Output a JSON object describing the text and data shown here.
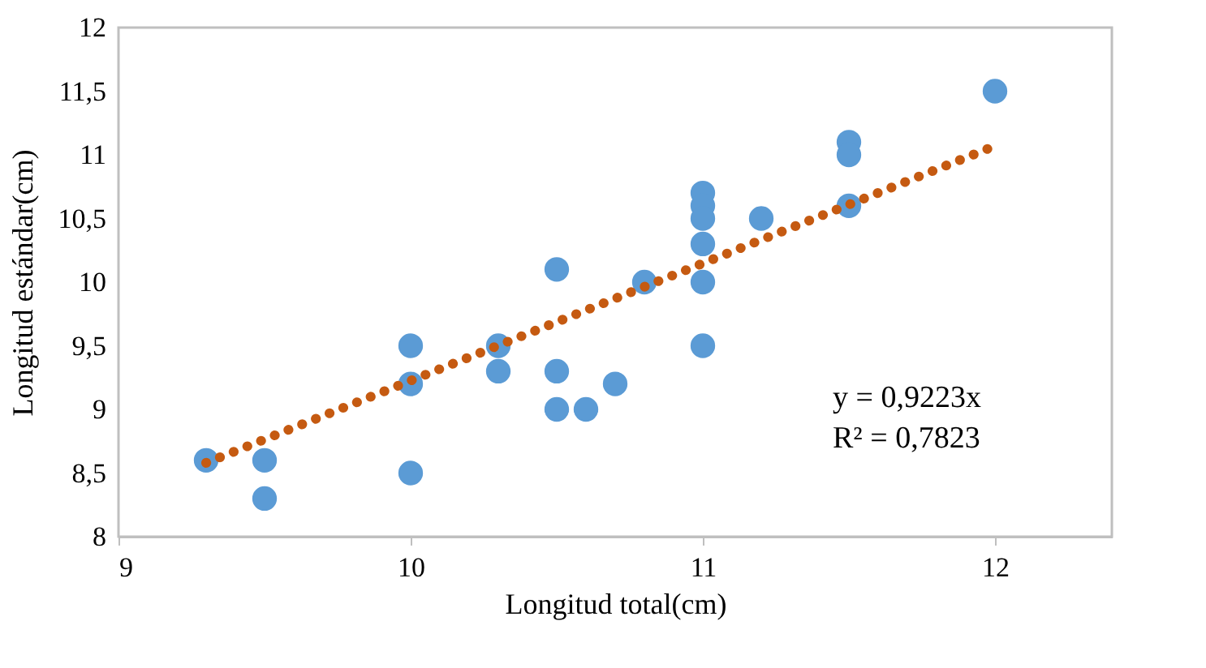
{
  "chart_data": {
    "type": "scatter",
    "xlabel": "Longitud total(cm)",
    "ylabel": "Longitud estándar(cm)",
    "xlim": [
      9,
      12.4
    ],
    "xticks": [
      9,
      10,
      11,
      12
    ],
    "ylim": [
      8,
      12
    ],
    "yticks": [
      8,
      {
        "value": 8.5,
        "label": "8,5"
      },
      9,
      {
        "value": 9.5,
        "label": "9,5"
      },
      10,
      {
        "value": 10.5,
        "label": "10,5"
      },
      11,
      {
        "value": 11.5,
        "label": "11,5"
      },
      12
    ],
    "grid": false,
    "series": [
      {
        "type": "scatter",
        "color": "#5b9bd5",
        "marker": "circle",
        "x": [
          9.3,
          9.5,
          9.5,
          10,
          10,
          10,
          10.3,
          10.3,
          10.5,
          10.5,
          10.5,
          10.6,
          10.7,
          10.8,
          11,
          11,
          11,
          11,
          11,
          11,
          11.2,
          11.5,
          11.5,
          11.5,
          12
        ],
        "values": [
          8.6,
          8.6,
          8.3,
          8.5,
          9.2,
          9.5,
          9.5,
          9.3,
          10.1,
          9.3,
          9.0,
          9.0,
          9.2,
          10.0,
          10.7,
          10.6,
          10.5,
          10.3,
          10.0,
          9.5,
          10.5,
          11.1,
          11.0,
          10.6,
          11.5
        ]
      },
      {
        "type": "line",
        "color": "#c55a11",
        "line_style": "dotted",
        "marker": "none",
        "x": [
          9.3,
          12
        ],
        "values": [
          8.58,
          11.07
        ]
      }
    ],
    "annotations": [
      "y = 0,9223x",
      "R² = 0,7823"
    ]
  }
}
